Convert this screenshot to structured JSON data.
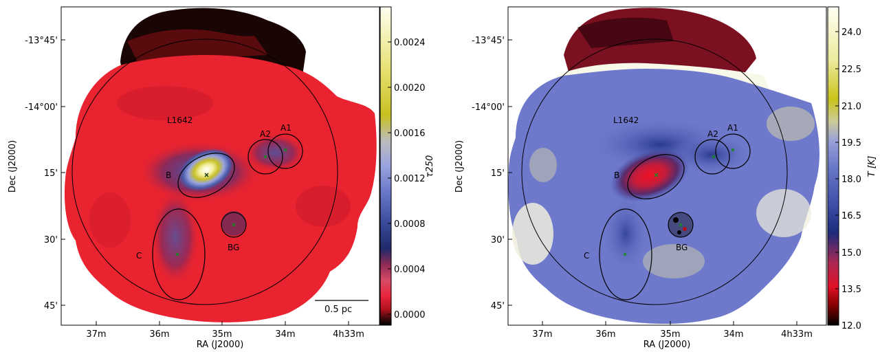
{
  "colors": {
    "tau_cmap": [
      "#000000",
      "#3a0a0a",
      "#b0121c",
      "#e8233a",
      "#d84a66",
      "#8f2a55",
      "#1f2a6a",
      "#3a4a9a",
      "#6a78c8",
      "#9aa3df",
      "#bcbcbc",
      "#c8c020",
      "#e6e070",
      "#fffff0"
    ],
    "temp_cmap": [
      "#000000",
      "#800000",
      "#e01026",
      "#b02850",
      "#5a2a6a",
      "#1c2b7a",
      "#3f4fa8",
      "#6b79c9",
      "#9aa1d8",
      "#cccc99",
      "#c9c31a",
      "#ecea9a",
      "#fffff4"
    ],
    "marker": "#138a1e",
    "map_red": "#e9232f",
    "map_black": "#000000",
    "temp_blue": "#6f79cc"
  },
  "left_panel": {
    "xlabel": "RA (J2000)",
    "ylabel": "Dec (J2000)",
    "xticks": [
      "37m",
      "36m",
      "35m",
      "34m",
      "4h33m"
    ],
    "yticks": [
      "-13°45'",
      "-14°00'",
      "15'",
      "30'",
      "45'"
    ],
    "labels": {
      "cloud": "L1642",
      "a1": "A1",
      "a2": "A2",
      "b": "B",
      "c": "C",
      "bg": "BG"
    },
    "scalebar": "0.5 pc",
    "colorbar": {
      "label": "τ250",
      "ticks": [
        "0.0024",
        "0.0020",
        "0.0016",
        "0.0012",
        "0.0008",
        "0.0004",
        "0.0000"
      ],
      "range": [
        -0.0001,
        0.0027
      ]
    }
  },
  "right_panel": {
    "xlabel": "RA (J2000)",
    "ylabel": "Dec (J2000)",
    "xticks": [
      "37m",
      "36m",
      "35m",
      "34m",
      "4h33m"
    ],
    "yticks": [
      "-13°45'",
      "-14°00'",
      "15'",
      "30'",
      "45'"
    ],
    "labels": {
      "cloud": "L1642",
      "a1": "A1",
      "a2": "A2",
      "b": "B",
      "c": "C",
      "bg": "BG"
    },
    "colorbar": {
      "label": "T [K]",
      "ticks": [
        "24.0",
        "22.5",
        "21.0",
        "19.5",
        "18.0",
        "16.5",
        "15.0",
        "13.5",
        "12.0"
      ],
      "range": [
        12.0,
        25.0
      ]
    }
  }
}
